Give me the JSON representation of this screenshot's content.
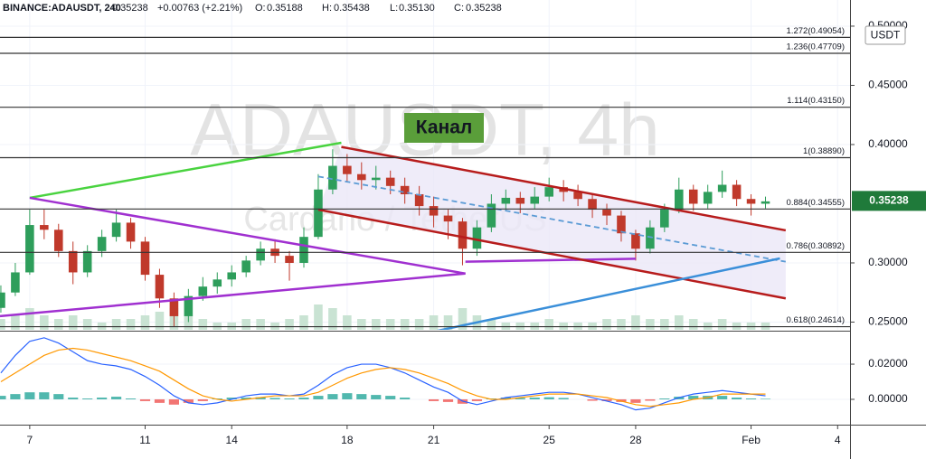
{
  "header": {
    "symbol": "BINANCE:ADAUSDT, 240",
    "last": "0.35238",
    "change": "+0.00763 (+2.21%)",
    "open_label": "O:",
    "open": "0.35188",
    "high_label": "H:",
    "high": "0.35438",
    "low_label": "L:",
    "low": "0.35130",
    "close_label": "C:",
    "close": "0.35238",
    "currency": "USDT"
  },
  "watermark": {
    "title": "ADAUSDT, 4h",
    "subtitle": "Cardano / TetherUS"
  },
  "chart_data": [
    {
      "type": "candlestick",
      "annotation": "Канал",
      "up_color": "#2e9e5b",
      "down_color": "#c0392b",
      "grid": true,
      "xlim": [
        5.97,
        35.43
      ],
      "ylim": [
        0.2435,
        0.5221
      ],
      "xticks": [
        7,
        11,
        14,
        18,
        21,
        25,
        28,
        {
          "value": 32,
          "label": "Feb"
        },
        {
          "value": 35,
          "label": "4"
        }
      ],
      "yticks": [
        {
          "value": 0.25,
          "label": "0.25000"
        },
        {
          "value": 0.3,
          "label": "0.30000"
        },
        {
          "value": 0.4,
          "label": "0.40000"
        },
        {
          "value": 0.45,
          "label": "0.45000"
        },
        {
          "value": 0.5,
          "label": "0.50000"
        }
      ],
      "last_price": 0.35238,
      "last_color": "#1f7a3a",
      "x": [
        6,
        6.5,
        7,
        7.5,
        8,
        8.5,
        9,
        9.5,
        10,
        10.5,
        11,
        11.5,
        12,
        12.5,
        13,
        13.5,
        14,
        14.5,
        15,
        15.5,
        16,
        16.5,
        17,
        17.5,
        18,
        18.5,
        19,
        19.5,
        20,
        20.5,
        21,
        21.5,
        22,
        22.5,
        23,
        23.5,
        24,
        24.5,
        25,
        25.5,
        26,
        26.5,
        27,
        27.5,
        28,
        28.5,
        29,
        29.5,
        30,
        30.5,
        31,
        31.5,
        32,
        32.5
      ],
      "open": [
        0.262,
        0.275,
        0.292,
        0.332,
        0.328,
        0.31,
        0.292,
        0.31,
        0.322,
        0.334,
        0.318,
        0.29,
        0.27,
        0.255,
        0.272,
        0.28,
        0.286,
        0.292,
        0.302,
        0.312,
        0.306,
        0.3,
        0.322,
        0.362,
        0.382,
        0.375,
        0.37,
        0.372,
        0.365,
        0.358,
        0.348,
        0.34,
        0.335,
        0.312,
        0.33,
        0.35,
        0.355,
        0.35,
        0.356,
        0.364,
        0.36,
        0.354,
        0.345,
        0.34,
        0.325,
        0.312,
        0.33,
        0.345,
        0.362,
        0.35,
        0.36,
        0.366,
        0.354,
        0.35
      ],
      "high": [
        0.281,
        0.3,
        0.345,
        0.345,
        0.333,
        0.318,
        0.315,
        0.328,
        0.345,
        0.338,
        0.322,
        0.295,
        0.275,
        0.278,
        0.288,
        0.292,
        0.298,
        0.306,
        0.318,
        0.32,
        0.31,
        0.33,
        0.375,
        0.396,
        0.392,
        0.385,
        0.382,
        0.378,
        0.372,
        0.365,
        0.356,
        0.345,
        0.338,
        0.336,
        0.358,
        0.362,
        0.36,
        0.364,
        0.372,
        0.37,
        0.366,
        0.358,
        0.35,
        0.344,
        0.328,
        0.336,
        0.35,
        0.372,
        0.366,
        0.366,
        0.378,
        0.37,
        0.358,
        0.356
      ],
      "low": [
        0.258,
        0.272,
        0.29,
        0.32,
        0.305,
        0.282,
        0.288,
        0.305,
        0.318,
        0.312,
        0.285,
        0.262,
        0.246,
        0.25,
        0.268,
        0.274,
        0.28,
        0.288,
        0.298,
        0.3,
        0.285,
        0.296,
        0.32,
        0.358,
        0.368,
        0.362,
        0.362,
        0.358,
        0.35,
        0.34,
        0.33,
        0.32,
        0.298,
        0.306,
        0.326,
        0.344,
        0.342,
        0.346,
        0.352,
        0.352,
        0.348,
        0.338,
        0.332,
        0.318,
        0.302,
        0.308,
        0.326,
        0.342,
        0.344,
        0.346,
        0.355,
        0.348,
        0.34,
        0.346
      ],
      "close": [
        0.275,
        0.292,
        0.332,
        0.328,
        0.31,
        0.292,
        0.31,
        0.322,
        0.334,
        0.318,
        0.29,
        0.27,
        0.255,
        0.272,
        0.28,
        0.286,
        0.292,
        0.302,
        0.312,
        0.306,
        0.3,
        0.322,
        0.362,
        0.382,
        0.375,
        0.37,
        0.372,
        0.365,
        0.358,
        0.348,
        0.34,
        0.335,
        0.312,
        0.33,
        0.35,
        0.355,
        0.35,
        0.356,
        0.364,
        0.36,
        0.354,
        0.345,
        0.34,
        0.325,
        0.312,
        0.33,
        0.345,
        0.362,
        0.35,
        0.36,
        0.366,
        0.354,
        0.35,
        0.352
      ],
      "volume": [
        3,
        4,
        6,
        4,
        3,
        4,
        3,
        2,
        3,
        3,
        4,
        5,
        6,
        4,
        3,
        2,
        2,
        3,
        3,
        2,
        3,
        4,
        7,
        6,
        4,
        3,
        3,
        3,
        3,
        3,
        4,
        4,
        6,
        4,
        3,
        2,
        2,
        2,
        3,
        2,
        2,
        2,
        3,
        3,
        4,
        3,
        3,
        4,
        3,
        2,
        3,
        2,
        2,
        2
      ],
      "volume_color": "#c9e3d3",
      "fib_levels": [
        {
          "value": 0.49054,
          "label": "1.272(0.49054)"
        },
        {
          "value": 0.47709,
          "label": "1.236(0.47709)"
        },
        {
          "value": 0.4315,
          "label": "1.114(0.43150)"
        },
        {
          "value": 0.3889,
          "label": "1(0.38890)"
        },
        {
          "value": 0.34555,
          "label": "0.884(0.34555)"
        },
        {
          "value": 0.30892,
          "label": "0.786(0.30892)"
        },
        {
          "value": 0.24614,
          "label": "0.618(0.24614)"
        }
      ],
      "channel_fill": "#ebe7f7",
      "trend_lines": [
        {
          "color": "#49d33f",
          "x": [
            7,
            17.8
          ],
          "y": [
            0.355,
            0.4015
          ]
        },
        {
          "color": "#a030d0",
          "x": [
            7,
            22.1
          ],
          "y": [
            0.355,
            0.291
          ]
        },
        {
          "color": "#a030d0",
          "x": [
            5.97,
            22.1
          ],
          "y": [
            0.255,
            0.291
          ]
        },
        {
          "color": "#a030d0",
          "x": [
            22.1,
            28
          ],
          "y": [
            0.301,
            0.3035
          ]
        },
        {
          "color": "#b71c1c",
          "x": [
            17.8,
            33.2
          ],
          "y": [
            0.398,
            0.3275
          ]
        },
        {
          "color": "#b71c1c",
          "x": [
            17,
            33.2
          ],
          "y": [
            0.345,
            0.27
          ]
        },
        {
          "color": "#5b9bd5",
          "dashed": true,
          "x": [
            17,
            33.2
          ],
          "y": [
            0.373,
            0.301
          ]
        },
        {
          "color": "#3a8fd9",
          "x": [
            21,
            33
          ],
          "y": [
            0.242,
            0.3038
          ]
        }
      ]
    },
    {
      "type": "macd",
      "xlim": [
        5.97,
        35.43
      ],
      "ylim": [
        -0.0144,
        0.038
      ],
      "grid": true,
      "yticks": [
        {
          "value": 0,
          "label": "0.00000"
        },
        {
          "value": 0.02,
          "label": "0.02000"
        }
      ],
      "x": [
        6,
        6.5,
        7,
        7.5,
        8,
        8.5,
        9,
        9.5,
        10,
        10.5,
        11,
        11.5,
        12,
        12.5,
        13,
        13.5,
        14,
        14.5,
        15,
        15.5,
        16,
        16.5,
        17,
        17.5,
        18,
        18.5,
        19,
        19.5,
        20,
        20.5,
        21,
        21.5,
        22,
        22.5,
        23,
        23.5,
        24,
        24.5,
        25,
        25.5,
        26,
        26.5,
        27,
        27.5,
        28,
        28.5,
        29,
        29.5,
        30,
        30.5,
        31,
        31.5,
        32,
        32.5
      ],
      "histogram": [
        0.002,
        0.003,
        0.004,
        0.004,
        0.003,
        0.001,
        0.0005,
        0.001,
        0.0015,
        0.0005,
        -0.001,
        -0.002,
        -0.003,
        -0.002,
        -0.001,
        0.0005,
        0.001,
        0.001,
        0.0012,
        0.0008,
        0.0005,
        0.001,
        0.002,
        0.003,
        0.0035,
        0.003,
        0.0025,
        0.002,
        0.001,
        0,
        -0.001,
        -0.0015,
        -0.0025,
        -0.001,
        0.0005,
        0.001,
        0.0008,
        0.001,
        0.0012,
        0.0008,
        0,
        -0.0008,
        -0.001,
        -0.0015,
        -0.002,
        -0.0008,
        0.0005,
        0.0015,
        0.002,
        0.002,
        0.002,
        0.001,
        0.0005,
        0.0003
      ],
      "positive_color": "#26a69a",
      "negative_color": "#ef5350",
      "series": [
        {
          "color": "#2962ff",
          "values": [
            0.015,
            0.025,
            0.033,
            0.035,
            0.032,
            0.027,
            0.022,
            0.02,
            0.019,
            0.017,
            0.013,
            0.008,
            0.002,
            -0.002,
            -0.003,
            -0.002,
            0,
            0.002,
            0.003,
            0.003,
            0.002,
            0.003,
            0.008,
            0.014,
            0.018,
            0.02,
            0.02,
            0.018,
            0.015,
            0.011,
            0.007,
            0.004,
            -0.001,
            -0.003,
            -0.001,
            0.001,
            0.002,
            0.003,
            0.004,
            0.004,
            0.003,
            0.001,
            -0.001,
            -0.003,
            -0.006,
            -0.005,
            -0.002,
            0.001,
            0.003,
            0.004,
            0.005,
            0.004,
            0.003,
            0.002
          ]
        },
        {
          "color": "#ff9800",
          "values": [
            0.01,
            0.015,
            0.02,
            0.025,
            0.028,
            0.029,
            0.028,
            0.026,
            0.024,
            0.022,
            0.019,
            0.016,
            0.011,
            0.006,
            0.002,
            0,
            -0.001,
            0,
            0.001,
            0.002,
            0.002,
            0.002,
            0.004,
            0.008,
            0.012,
            0.015,
            0.017,
            0.018,
            0.017,
            0.015,
            0.012,
            0.009,
            0.005,
            0.002,
            0,
            0,
            0.001,
            0.002,
            0.003,
            0.003,
            0.003,
            0.002,
            0.001,
            -0.001,
            -0.003,
            -0.004,
            -0.003,
            -0.002,
            0,
            0.001,
            0.003,
            0.003,
            0.003,
            0.003
          ]
        }
      ]
    }
  ]
}
